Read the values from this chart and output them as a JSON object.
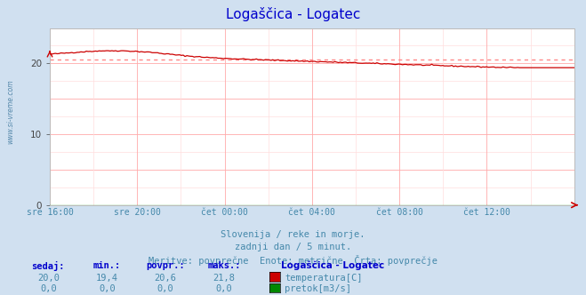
{
  "title": "Logaščica - Logatec",
  "title_color": "#0000cc",
  "bg_color": "#d0e0f0",
  "plot_bg_color": "#ffffff",
  "grid_color": "#ffaaaa",
  "grid_color_minor": "#ffdddd",
  "x_labels": [
    "sre 16:00",
    "sre 20:00",
    "čet 00:00",
    "čet 04:00",
    "čet 08:00",
    "čet 12:00"
  ],
  "x_ticks_norm": [
    0.0,
    0.1667,
    0.3333,
    0.5,
    0.6667,
    0.8333
  ],
  "ylim": [
    0,
    25
  ],
  "yticks": [
    0,
    10,
    20
  ],
  "temp_avg": 20.6,
  "temp_min": 19.4,
  "temp_max": 21.8,
  "temp_current": 20.0,
  "flow_current": 0.0,
  "flow_min": 0.0,
  "flow_avg": 0.0,
  "flow_max": 0.0,
  "temp_line_color": "#cc0000",
  "temp_avg_line_color": "#ff8888",
  "flow_line_color": "#008800",
  "subtitle1": "Slovenija / reke in morje.",
  "subtitle2": "zadnji dan / 5 minut.",
  "subtitle3": "Meritve: povprečne  Enote: metrične  Črta: povprečje",
  "subtitle_color": "#4488aa",
  "watermark": "www.si-vreme.com",
  "watermark_color": "#5588aa",
  "label_sedaj": "sedaj:",
  "label_min": "min.:",
  "label_povpr": "povpr.:",
  "label_maks": "maks.:",
  "label_station": "Logaščica - Logatec",
  "label_temp": "temperatura[C]",
  "label_flow": "pretok[m3/s]",
  "label_color": "#0000cc",
  "value_color": "#4488aa",
  "tick_label_color": "#4488aa"
}
